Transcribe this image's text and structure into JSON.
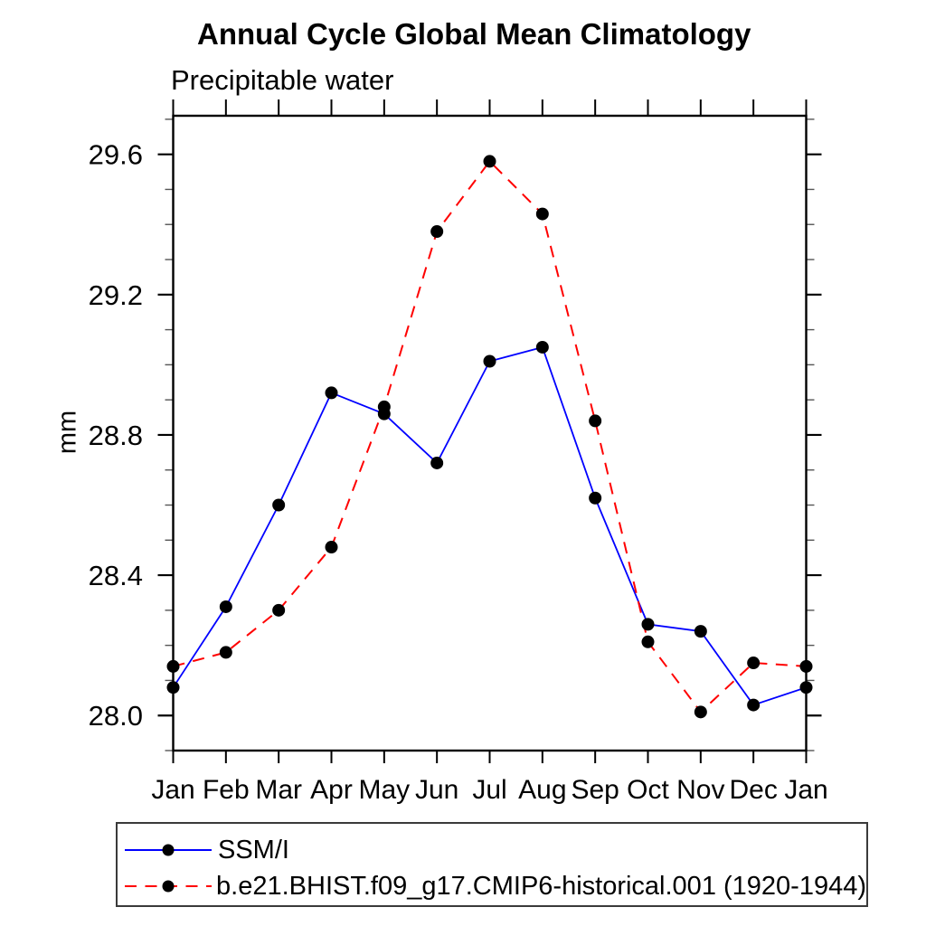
{
  "chart_data": {
    "type": "line",
    "title": "Annual Cycle Global Mean Climatology",
    "subtitle": "Precipitable water",
    "xlabel": "",
    "ylabel": "mm",
    "categories": [
      "Jan",
      "Feb",
      "Mar",
      "Apr",
      "May",
      "Jun",
      "Jul",
      "Aug",
      "Sep",
      "Oct",
      "Nov",
      "Dec",
      "Jan"
    ],
    "series": [
      {
        "name": "SSM/I",
        "color": "#0000ff",
        "line_style": "solid",
        "marker": "filled-circle",
        "marker_color": "#000000",
        "values": [
          28.08,
          28.31,
          28.6,
          28.92,
          28.86,
          28.72,
          29.01,
          29.05,
          28.62,
          28.26,
          28.24,
          28.03,
          28.08
        ]
      },
      {
        "name": "b.e21.BHIST.f09_g17.CMIP6-historical.001 (1920-1944)",
        "color": "#ff0000",
        "line_style": "dashed",
        "marker": "filled-circle",
        "marker_color": "#000000",
        "values": [
          28.14,
          28.18,
          28.3,
          28.48,
          28.88,
          29.38,
          29.58,
          29.43,
          28.84,
          28.21,
          28.01,
          28.15,
          28.14
        ]
      }
    ],
    "ylim": [
      27.9,
      29.71
    ],
    "yticks_major": [
      28.0,
      28.4,
      28.8,
      29.2,
      29.6
    ],
    "ytick_minor_step": 0.1,
    "ytick_label_format": "one-decimal",
    "grid": false,
    "legend_position": "bottom-left"
  }
}
